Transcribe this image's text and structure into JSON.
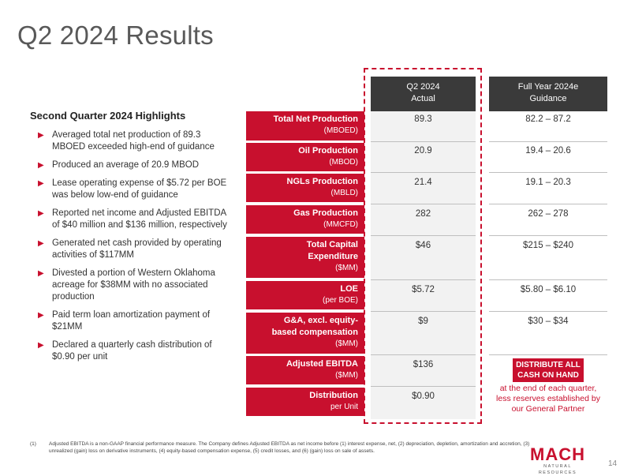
{
  "title": "Q2 2024 Results",
  "highlights": {
    "heading": "Second Quarter 2024 Highlights",
    "items": [
      "Averaged total net production of 89.3 MBOED exceeded high-end of guidance",
      "Produced an average of 20.9 MBOD",
      "Lease operating expense of $5.72 per BOE was below low-end of guidance",
      "Reported net income and Adjusted EBITDA of $40 million and $136 million, respectively",
      "Generated net cash provided by operating activities of $117MM",
      "Divested a portion of Western Oklahoma acreage for $38MM with no associated production",
      "Paid term loan amortization payment of $21MM",
      "Declared a quarterly cash distribution of $0.90 per unit"
    ]
  },
  "table": {
    "col_q2_line1": "Q2 2024",
    "col_q2_line2": "Actual",
    "col_fy_line1": "Full Year 2024e",
    "col_fy_line2": "Guidance",
    "rows": [
      {
        "label": "Total Net Production",
        "unit": "(MBOED)",
        "q2": "89.3",
        "fy": "82.2 – 87.2"
      },
      {
        "label": "Oil Production",
        "unit": "(MBOD)",
        "q2": "20.9",
        "fy": "19.4 – 20.6"
      },
      {
        "label": "NGLs Production",
        "unit": "(MBLD)",
        "q2": "21.4",
        "fy": "19.1 – 20.3"
      },
      {
        "label": "Gas Production",
        "unit": "(MMCFD)",
        "q2": "282",
        "fy": "262 – 278"
      },
      {
        "label_line1": "Total Capital",
        "label_line2": "Expenditure",
        "unit": "($MM)",
        "q2": "$46",
        "fy": "$215 – $240"
      },
      {
        "label": "LOE",
        "unit": "(per BOE)",
        "q2": "$5.72",
        "fy": "$5.80 – $6.10"
      },
      {
        "label_line1": "G&A, excl. equity-",
        "label_line2": "based compensation",
        "unit": "($MM)",
        "q2": "$9",
        "fy": "$30 – $34"
      },
      {
        "label": "Adjusted EBITDA",
        "unit": "($MM)",
        "q2": "$136",
        "fy": ""
      },
      {
        "label": "Distribution",
        "unit": "per Unit",
        "q2": "$0.90",
        "fy": ""
      }
    ],
    "distribution_note": {
      "highlight_line1": "DISTRIBUTE ALL",
      "highlight_line2": "CASH ON HAND",
      "rest_line1": "at the end of each quarter,",
      "rest_line2": "less reserves established by",
      "rest_line3": "our General Partner"
    }
  },
  "footnote": {
    "number": "(1)",
    "text": "Adjusted EBITDA is a non-GAAP financial performance measure. The Company defines Adjusted EBITDA as net income before (1) interest expense, net, (2) depreciation, depletion, amortization and accretion, (3) unrealized (gain) loss on derivative instruments, (4) equity-based compensation expense, (5) credit losses, and (6) (gain) loss on sale of assets."
  },
  "logo": {
    "main": "MACH",
    "sub": "NATURAL RESOURCES"
  },
  "page_number": "14",
  "colors": {
    "accent": "#c8102e",
    "header_dark": "#3a3a3a",
    "highlight_bg": "#f2f2f2"
  }
}
